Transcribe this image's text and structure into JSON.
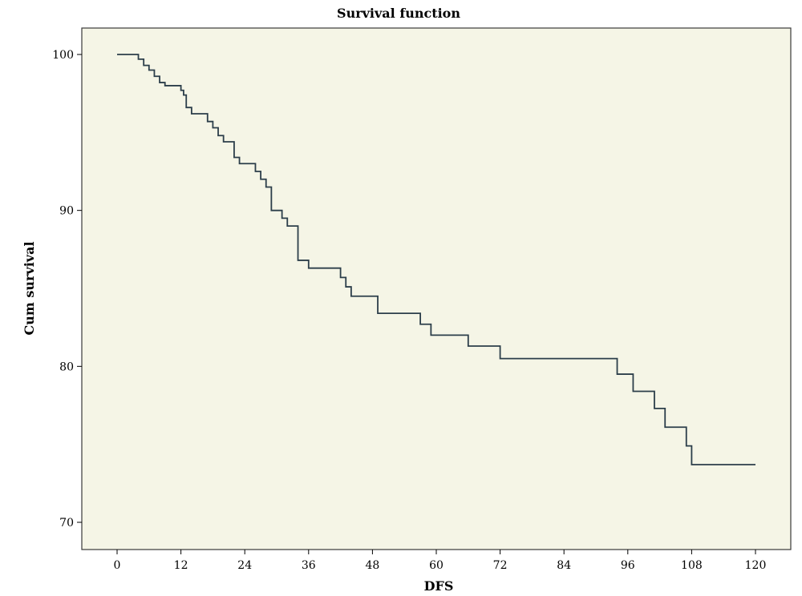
{
  "chart_data": {
    "type": "line",
    "title": "Survival function",
    "xlabel": "DFS",
    "ylabel": "Cum survival",
    "xlim": [
      0,
      120
    ],
    "ylim": [
      68.1,
      101.9
    ],
    "x_ticks": [
      0,
      12,
      24,
      36,
      48,
      60,
      72,
      84,
      96,
      108,
      120
    ],
    "y_ticks": [
      70,
      80,
      90,
      100
    ],
    "grid": false,
    "legend": "none",
    "line_color": "#2c3e4a",
    "background": "#f5f5e6",
    "series": [
      {
        "step": "post",
        "x": [
          0,
          4,
          5,
          6,
          7,
          8,
          9,
          12,
          12.5,
          13,
          14,
          17,
          18,
          19,
          20,
          22,
          23,
          24,
          26,
          27,
          28,
          29,
          31,
          32,
          33,
          34,
          36,
          42,
          43,
          44,
          49,
          57,
          59,
          66,
          72,
          94,
          97,
          101,
          103,
          107,
          108,
          120
        ],
        "y": [
          100,
          99.7,
          99.3,
          99.0,
          98.6,
          98.2,
          98.0,
          97.7,
          97.4,
          96.6,
          96.2,
          95.7,
          95.3,
          94.8,
          94.4,
          93.4,
          93.0,
          93.0,
          92.5,
          92.0,
          91.5,
          90.0,
          89.5,
          89.0,
          89.0,
          86.8,
          86.3,
          85.7,
          85.1,
          84.5,
          83.4,
          82.7,
          82.0,
          81.3,
          80.5,
          79.5,
          78.4,
          77.3,
          76.1,
          74.9,
          73.7,
          73.7
        ]
      }
    ]
  }
}
